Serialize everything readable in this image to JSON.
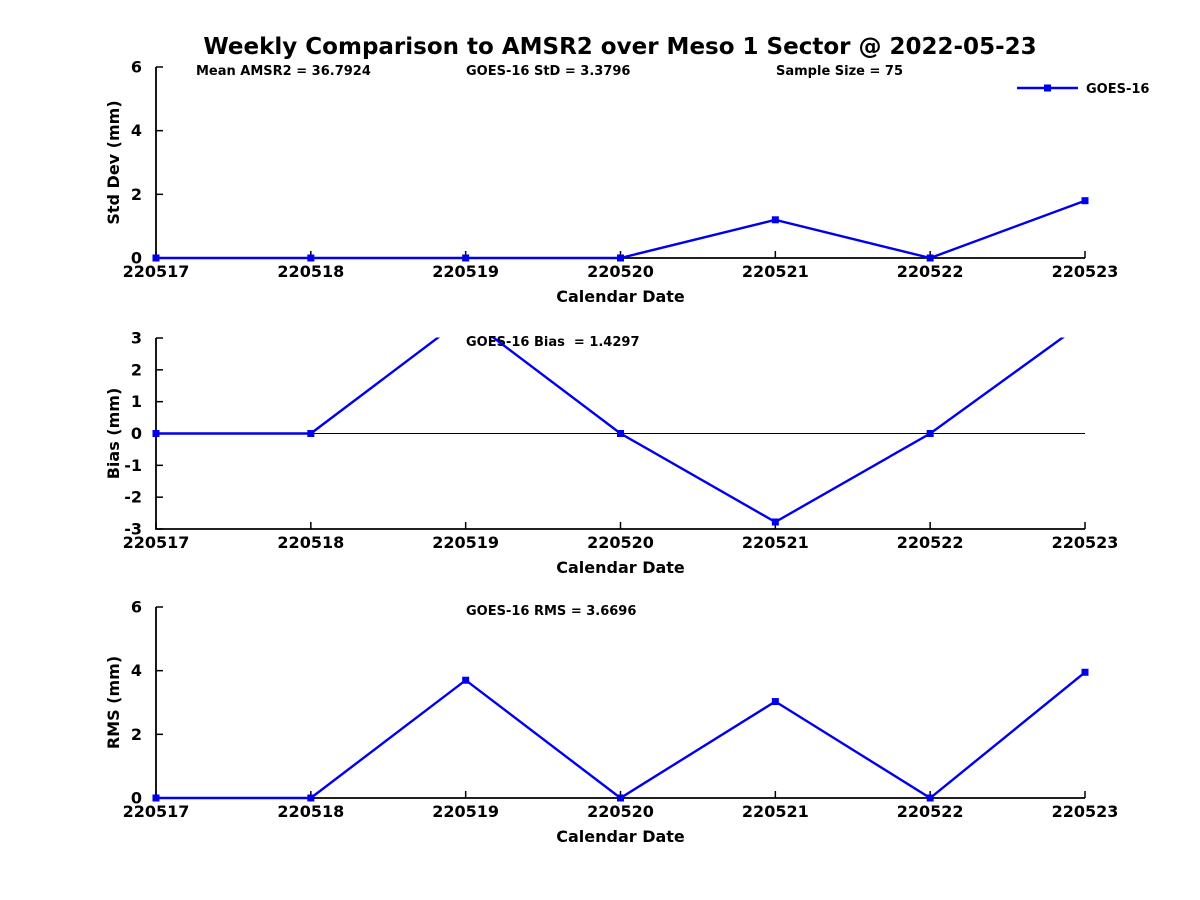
{
  "figure": {
    "title": "Weekly Comparison to AMSR2 over Meso 1 Sector @ 2022-05-23",
    "background": "#ffffff",
    "line_color": "#0000ee",
    "axis_color": "#000000",
    "legend": {
      "label": "GOES-16",
      "position": "top-right"
    }
  },
  "chart_data": [
    {
      "type": "line",
      "panel": "std-dev",
      "ylabel": "Std Dev (mm)",
      "xlabel": "Calendar Date",
      "categories": [
        "220517",
        "220518",
        "220519",
        "220520",
        "220521",
        "220522",
        "220523"
      ],
      "series": [
        {
          "name": "GOES-16",
          "values": [
            0,
            0,
            0,
            0,
            1.2,
            0,
            1.8
          ]
        }
      ],
      "ylim": [
        0,
        6
      ],
      "yticks": [
        0,
        2,
        4,
        6
      ],
      "annotations": [
        "Mean AMSR2 = 36.7924",
        "GOES-16 StD = 3.3796",
        "Sample Size = 75"
      ],
      "grid": false,
      "marker": "square"
    },
    {
      "type": "line",
      "panel": "bias",
      "ylabel": "Bias (mm)",
      "xlabel": "Calendar Date",
      "categories": [
        "220517",
        "220518",
        "220519",
        "220520",
        "220521",
        "220522",
        "220523"
      ],
      "series": [
        {
          "name": "GOES-16",
          "values": [
            0,
            0,
            3.67,
            0,
            -2.78,
            0,
            3.52
          ]
        }
      ],
      "ylim": [
        -3,
        3
      ],
      "yticks": [
        3,
        2,
        1,
        0,
        -1,
        -2,
        -3
      ],
      "annotations": [
        "GOES-16 Bias  = 1.4297"
      ],
      "zero_line": true,
      "grid": false,
      "marker": "square",
      "note": "values above ymax 3 are clipped at plot top"
    },
    {
      "type": "line",
      "panel": "rms",
      "ylabel": "RMS (mm)",
      "xlabel": "Calendar Date",
      "categories": [
        "220517",
        "220518",
        "220519",
        "220520",
        "220521",
        "220522",
        "220523"
      ],
      "series": [
        {
          "name": "GOES-16",
          "values": [
            0,
            0,
            3.7,
            0,
            3.03,
            0,
            3.95
          ]
        }
      ],
      "ylim": [
        0,
        6
      ],
      "yticks": [
        0,
        2,
        4,
        6
      ],
      "annotations": [
        "GOES-16 RMS = 3.6696"
      ],
      "grid": false,
      "marker": "square"
    }
  ]
}
